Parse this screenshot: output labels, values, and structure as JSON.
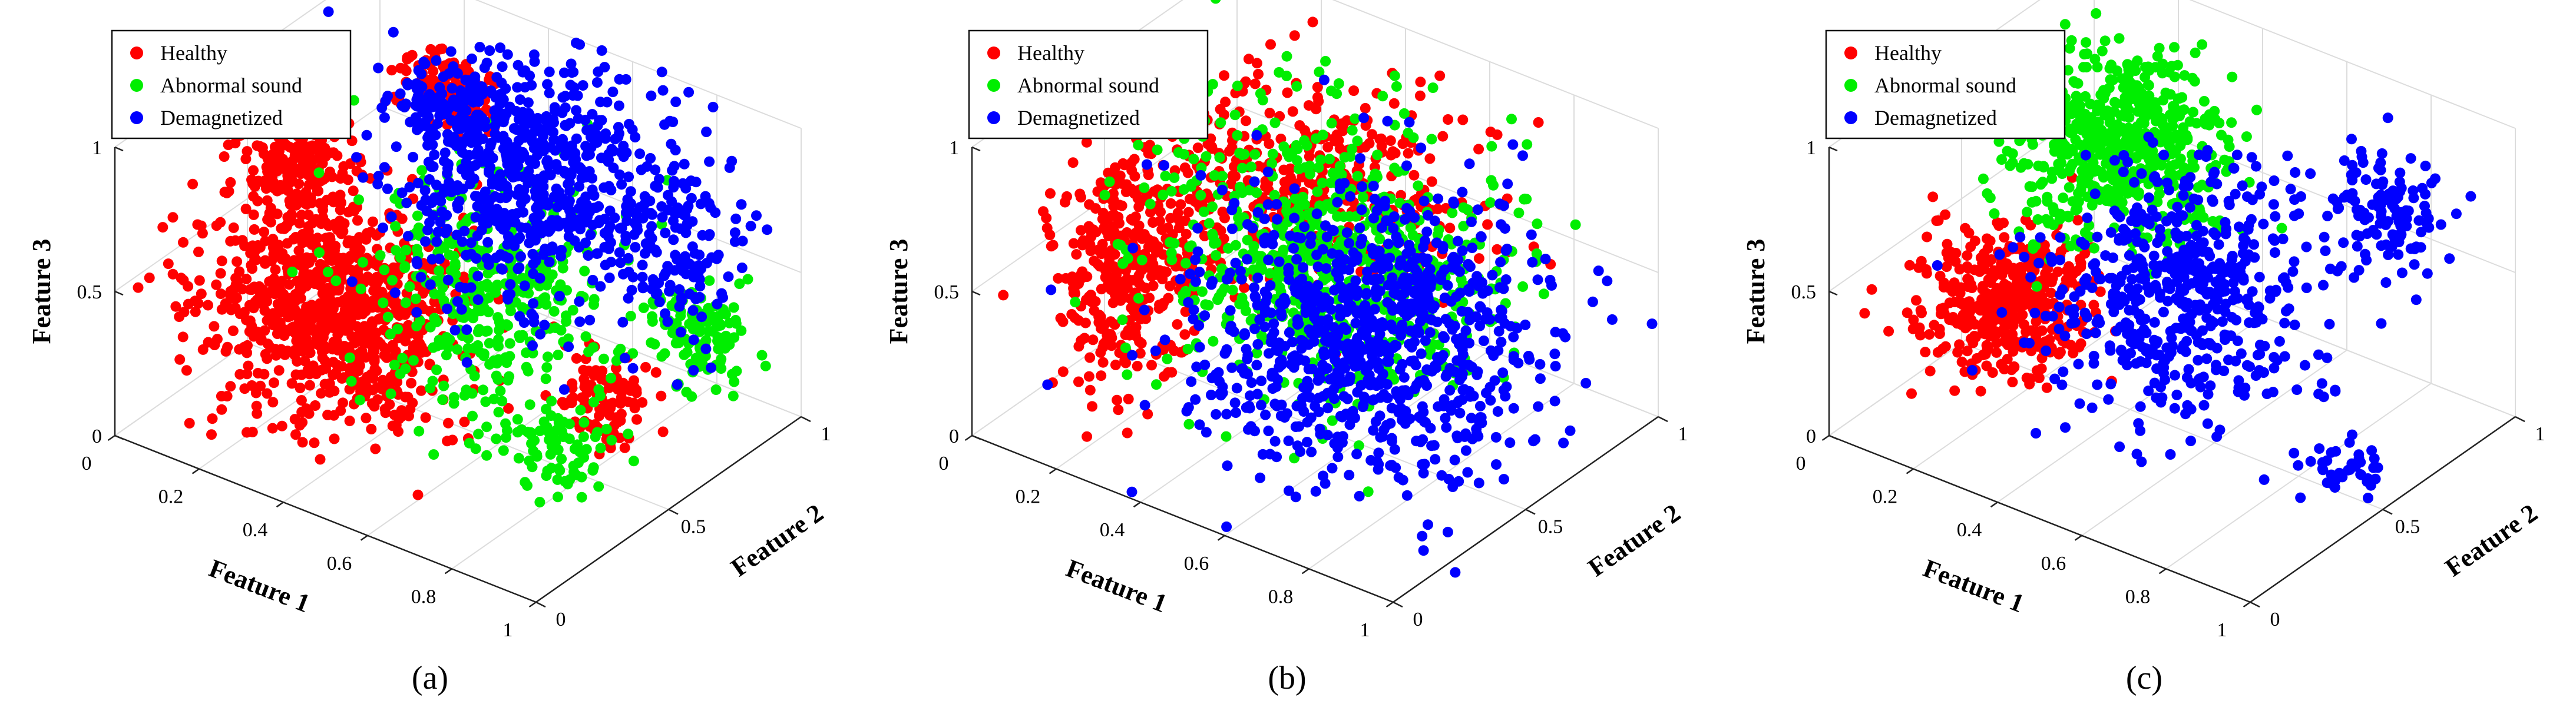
{
  "figure_title": "",
  "colors": {
    "healthy": "#ff0000",
    "abnormal": "#00ee00",
    "demagnetized": "#0000ff"
  },
  "chart_data": [
    {
      "type": "scatter",
      "subtype": "3d",
      "panel_label": "(a)",
      "xlabel": "Feature 1",
      "ylabel": "Feature 2",
      "zlabel": "Feature 3",
      "xlim": [
        0,
        1
      ],
      "ylim": [
        0,
        1
      ],
      "zlim": [
        0,
        1
      ],
      "xticks": [
        "0",
        "0.2",
        "0.4",
        "0.6",
        "0.8",
        "1"
      ],
      "yticks": [
        "0",
        "0.5",
        "1"
      ],
      "zticks": [
        "0",
        "0.5",
        "1"
      ],
      "legend": [
        "Healthy",
        "Abnormal sound",
        "Demagnetized"
      ],
      "legend_position": "top-left",
      "series": [
        {
          "name": "Healthy",
          "clusters": [
            {
              "x": 0.3,
              "y": 0.35,
              "z": 0.4,
              "sx": 0.14,
              "sy": 0.12,
              "sz": 0.16,
              "n": 900
            },
            {
              "x": 0.15,
              "y": 0.45,
              "z": 0.75,
              "sx": 0.05,
              "sy": 0.05,
              "sz": 0.1,
              "n": 200
            },
            {
              "x": 0.35,
              "y": 0.7,
              "z": 0.95,
              "sx": 0.06,
              "sy": 0.04,
              "sz": 0.05,
              "n": 120
            },
            {
              "x": 0.85,
              "y": 0.5,
              "z": 0.3,
              "sx": 0.05,
              "sy": 0.05,
              "sz": 0.08,
              "n": 100
            }
          ]
        },
        {
          "name": "Abnormal sound",
          "clusters": [
            {
              "x": 0.55,
              "y": 0.55,
              "z": 0.45,
              "sx": 0.12,
              "sy": 0.14,
              "sz": 0.18,
              "n": 380
            },
            {
              "x": 0.85,
              "y": 0.85,
              "z": 0.3,
              "sx": 0.06,
              "sy": 0.05,
              "sz": 0.08,
              "n": 120
            },
            {
              "x": 0.8,
              "y": 0.4,
              "z": 0.15,
              "sx": 0.05,
              "sy": 0.05,
              "sz": 0.06,
              "n": 80
            }
          ]
        },
        {
          "name": "Demagnetized",
          "clusters": [
            {
              "x": 0.55,
              "y": 0.7,
              "z": 0.75,
              "sx": 0.13,
              "sy": 0.14,
              "sz": 0.16,
              "n": 650
            },
            {
              "x": 0.8,
              "y": 0.85,
              "z": 0.55,
              "sx": 0.06,
              "sy": 0.08,
              "sz": 0.14,
              "n": 150
            },
            {
              "x": 0.45,
              "y": 0.55,
              "z": 1.05,
              "sx": 0.06,
              "sy": 0.06,
              "sz": 0.06,
              "n": 120
            }
          ]
        }
      ]
    },
    {
      "type": "scatter",
      "subtype": "3d",
      "panel_label": "(b)",
      "xlabel": "Feature 1",
      "ylabel": "Feature 2",
      "zlabel": "Feature 3",
      "xlim": [
        0,
        1
      ],
      "ylim": [
        0,
        1
      ],
      "zlim": [
        0,
        1
      ],
      "xticks": [
        "0",
        "0.2",
        "0.4",
        "0.6",
        "0.8",
        "1"
      ],
      "yticks": [
        "0",
        "0.5",
        "1"
      ],
      "zticks": [
        "0",
        "0.5",
        "1"
      ],
      "legend": [
        "Healthy",
        "Abnormal sound",
        "Demagnetized"
      ],
      "legend_position": "top-left",
      "series": [
        {
          "name": "Healthy",
          "clusters": [
            {
              "x": 0.15,
              "y": 0.35,
              "z": 0.45,
              "sx": 0.06,
              "sy": 0.1,
              "sz": 0.18,
              "n": 350
            },
            {
              "x": 0.45,
              "y": 0.55,
              "z": 0.8,
              "sx": 0.18,
              "sy": 0.15,
              "sz": 0.12,
              "n": 400
            }
          ]
        },
        {
          "name": "Abnormal sound",
          "clusters": [
            {
              "x": 0.5,
              "y": 0.55,
              "z": 0.55,
              "sx": 0.18,
              "sy": 0.18,
              "sz": 0.2,
              "n": 700
            }
          ]
        },
        {
          "name": "Demagnetized",
          "clusters": [
            {
              "x": 0.6,
              "y": 0.55,
              "z": 0.35,
              "sx": 0.18,
              "sy": 0.18,
              "sz": 0.2,
              "n": 900
            }
          ]
        }
      ]
    },
    {
      "type": "scatter",
      "subtype": "3d",
      "panel_label": "(c)",
      "xlabel": "Feature 1",
      "ylabel": "Feature 2",
      "zlabel": "Feature 3",
      "xlim": [
        0,
        1
      ],
      "ylim": [
        0,
        1
      ],
      "zlim": [
        0,
        1
      ],
      "xticks": [
        "0",
        "0.2",
        "0.4",
        "0.6",
        "0.8",
        "1"
      ],
      "yticks": [
        "0",
        "0.5",
        "1"
      ],
      "zticks": [
        "0",
        "0.5",
        "1"
      ],
      "legend": [
        "Healthy",
        "Abnormal sound",
        "Demagnetized"
      ],
      "legend_position": "top-left",
      "series": [
        {
          "name": "Healthy",
          "clusters": [
            {
              "x": 0.2,
              "y": 0.35,
              "z": 0.35,
              "sx": 0.08,
              "sy": 0.1,
              "sz": 0.1,
              "n": 450
            }
          ]
        },
        {
          "name": "Abnormal sound",
          "clusters": [
            {
              "x": 0.35,
              "y": 0.55,
              "z": 0.85,
              "sx": 0.1,
              "sy": 0.12,
              "sz": 0.13,
              "n": 600
            }
          ]
        },
        {
          "name": "Demagnetized",
          "clusters": [
            {
              "x": 0.5,
              "y": 0.55,
              "z": 0.45,
              "sx": 0.13,
              "sy": 0.16,
              "sz": 0.18,
              "n": 550
            },
            {
              "x": 0.75,
              "y": 0.9,
              "z": 0.65,
              "sx": 0.06,
              "sy": 0.06,
              "sz": 0.1,
              "n": 120
            },
            {
              "x": 0.9,
              "y": 0.55,
              "z": 0.05,
              "sx": 0.04,
              "sy": 0.04,
              "sz": 0.04,
              "n": 40
            }
          ]
        }
      ]
    }
  ]
}
